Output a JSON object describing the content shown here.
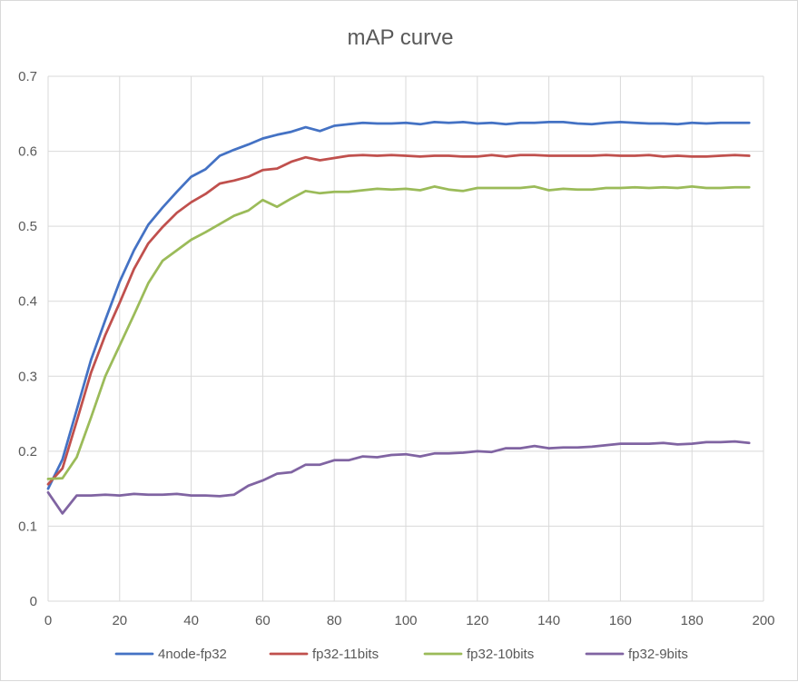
{
  "chart_data": {
    "type": "line",
    "title": "mAP curve",
    "xlabel": "",
    "ylabel": "",
    "xlim": [
      0,
      200
    ],
    "ylim": [
      0,
      0.7
    ],
    "x_ticks": [
      "0",
      "20",
      "40",
      "60",
      "80",
      "100",
      "120",
      "140",
      "160",
      "180",
      "200"
    ],
    "y_ticks": [
      "0",
      "0.1",
      "0.2",
      "0.3",
      "0.4",
      "0.5",
      "0.6",
      "0.7"
    ],
    "grid": "vertical and horizontal",
    "legend_position": "bottom",
    "x": [
      0,
      4,
      8,
      12,
      16,
      20,
      24,
      28,
      32,
      36,
      40,
      44,
      48,
      52,
      56,
      60,
      64,
      68,
      72,
      76,
      80,
      84,
      88,
      92,
      96,
      100,
      104,
      108,
      112,
      116,
      120,
      124,
      128,
      132,
      136,
      140,
      144,
      148,
      152,
      156,
      160,
      164,
      168,
      172,
      176,
      180,
      184,
      188,
      192,
      196
    ],
    "series": [
      {
        "name": "4node-fp32",
        "color": "#4472c4",
        "values": [
          0.15,
          0.189,
          0.255,
          0.322,
          0.375,
          0.426,
          0.468,
          0.502,
          0.525,
          0.546,
          0.566,
          0.576,
          0.594,
          0.602,
          0.609,
          0.617,
          0.622,
          0.626,
          0.632,
          0.627,
          0.634,
          0.636,
          0.638,
          0.637,
          0.637,
          0.638,
          0.636,
          0.639,
          0.638,
          0.639,
          0.637,
          0.638,
          0.636,
          0.638,
          0.638,
          0.639,
          0.639,
          0.637,
          0.636,
          0.638,
          0.639,
          0.638,
          0.637,
          0.637,
          0.636,
          0.638,
          0.637,
          0.638,
          0.638,
          0.638
        ]
      },
      {
        "name": "fp32-11bits",
        "color": "#c0504d",
        "values": [
          0.156,
          0.177,
          0.24,
          0.305,
          0.355,
          0.398,
          0.443,
          0.477,
          0.499,
          0.518,
          0.532,
          0.543,
          0.557,
          0.561,
          0.566,
          0.575,
          0.577,
          0.586,
          0.592,
          0.588,
          0.591,
          0.594,
          0.595,
          0.594,
          0.595,
          0.594,
          0.593,
          0.594,
          0.594,
          0.593,
          0.593,
          0.595,
          0.593,
          0.595,
          0.595,
          0.594,
          0.594,
          0.594,
          0.594,
          0.595,
          0.594,
          0.594,
          0.595,
          0.593,
          0.594,
          0.593,
          0.593,
          0.594,
          0.595,
          0.594
        ]
      },
      {
        "name": "fp32-10bits",
        "color": "#9bbb59",
        "values": [
          0.163,
          0.164,
          0.192,
          0.245,
          0.3,
          0.341,
          0.382,
          0.424,
          0.454,
          0.468,
          0.482,
          0.492,
          0.503,
          0.514,
          0.521,
          0.535,
          0.526,
          0.537,
          0.547,
          0.544,
          0.546,
          0.546,
          0.548,
          0.55,
          0.549,
          0.55,
          0.548,
          0.553,
          0.549,
          0.547,
          0.551,
          0.551,
          0.551,
          0.551,
          0.553,
          0.548,
          0.55,
          0.549,
          0.549,
          0.551,
          0.551,
          0.552,
          0.551,
          0.552,
          0.551,
          0.553,
          0.551,
          0.551,
          0.552,
          0.552
        ]
      },
      {
        "name": "fp32-9bits",
        "color": "#8064a2",
        "values": [
          0.145,
          0.117,
          0.141,
          0.141,
          0.142,
          0.141,
          0.143,
          0.142,
          0.142,
          0.143,
          0.141,
          0.141,
          0.14,
          0.142,
          0.154,
          0.161,
          0.17,
          0.172,
          0.182,
          0.182,
          0.188,
          0.188,
          0.193,
          0.192,
          0.195,
          0.196,
          0.193,
          0.197,
          0.197,
          0.198,
          0.2,
          0.199,
          0.204,
          0.204,
          0.207,
          0.204,
          0.205,
          0.205,
          0.206,
          0.208,
          0.21,
          0.21,
          0.21,
          0.211,
          0.209,
          0.21,
          0.212,
          0.212,
          0.213,
          0.211
        ]
      }
    ]
  }
}
